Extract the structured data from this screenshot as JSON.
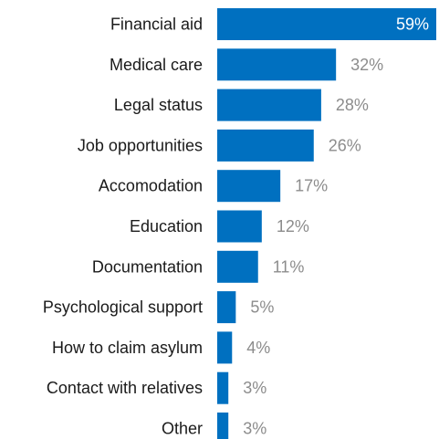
{
  "chart_data": {
    "type": "bar",
    "orientation": "horizontal",
    "categories": [
      "Financial aid",
      "Medical care",
      "Legal status",
      "Job opportunities",
      "Accomodation",
      "Education",
      "Documentation",
      "Psychological support",
      "How to claim asylum",
      "Contact with relatives",
      "Other"
    ],
    "values": [
      59,
      32,
      28,
      26,
      17,
      12,
      11,
      5,
      4,
      3,
      3
    ],
    "value_labels": [
      "59%",
      "32%",
      "28%",
      "26%",
      "17%",
      "12%",
      "11%",
      "5%",
      "4%",
      "3%",
      "3%"
    ],
    "unit": "%",
    "xlim": [
      0,
      59
    ],
    "grid": false,
    "legend": "none",
    "colors": {
      "bar": "#0070c0",
      "label_inside": "#ffffff",
      "label_outside": "#8c8c8c",
      "category_text": "#1a1a1a"
    }
  }
}
